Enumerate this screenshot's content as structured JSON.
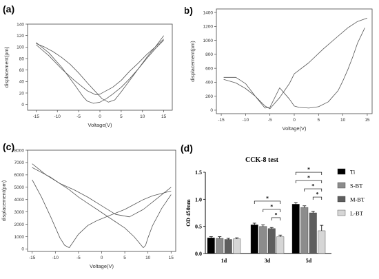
{
  "chart_data": [
    {
      "panel_label": "(a)",
      "type": "line",
      "xlabel": "Voltage(V)",
      "ylabel": "displacement(pm)",
      "xlim": [
        -17,
        17
      ],
      "ylim": [
        -10,
        140
      ],
      "xticks": [
        -15,
        -10,
        -5,
        0,
        5,
        10,
        15
      ],
      "yticks": [
        0,
        20,
        40,
        60,
        80,
        100,
        120,
        140
      ],
      "series": [
        {
          "x": [
            -15,
            -12,
            -9,
            -6,
            -4,
            -3,
            -1.5,
            0,
            1.5,
            3,
            5,
            7,
            9,
            11,
            13,
            15
          ],
          "y": [
            108,
            90,
            65,
            35,
            14,
            6,
            2,
            4,
            10,
            18,
            30,
            45,
            62,
            80,
            97,
            112
          ]
        },
        {
          "x": [
            15,
            13,
            11,
            9,
            7,
            5,
            3.5,
            2,
            0.5,
            -1,
            -3,
            -5,
            -7,
            -9,
            -11,
            -13,
            -15
          ],
          "y": [
            120,
            100,
            82,
            62,
            42,
            22,
            8,
            4,
            10,
            22,
            38,
            55,
            70,
            82,
            92,
            100,
            106
          ]
        },
        {
          "x": [
            -15,
            -12,
            -9,
            -6,
            -3,
            -1,
            0,
            1,
            3,
            5,
            7,
            9,
            11,
            13,
            15
          ],
          "y": [
            104,
            85,
            62,
            42,
            24,
            17,
            18,
            22,
            30,
            42,
            58,
            72,
            87,
            100,
            114
          ]
        }
      ]
    },
    {
      "panel_label": "(b)",
      "type": "line",
      "xlabel": "Voltage(V)",
      "ylabel": "displacement(pm)",
      "xlim": [
        -16,
        16
      ],
      "ylim": [
        -50,
        1450
      ],
      "xticks": [
        -15,
        -10,
        -5,
        0,
        5,
        10,
        15
      ],
      "yticks": [
        0,
        200,
        400,
        600,
        800,
        1000,
        1200,
        1400
      ],
      "series": [
        {
          "x": [
            -14.5,
            -12,
            -10,
            -8,
            -6,
            -5,
            -3,
            -1,
            0,
            3,
            6,
            9,
            11,
            13,
            15
          ],
          "y": [
            440,
            390,
            310,
            200,
            60,
            20,
            180,
            380,
            520,
            680,
            880,
            1060,
            1180,
            1270,
            1320
          ]
        },
        {
          "x": [
            14.5,
            13,
            12,
            11,
            10,
            9,
            7,
            5,
            3,
            1,
            0,
            -1,
            -3,
            -5,
            -6,
            -8,
            -10,
            -12,
            -14.5
          ],
          "y": [
            1180,
            960,
            760,
            580,
            420,
            280,
            120,
            50,
            30,
            40,
            60,
            160,
            320,
            40,
            30,
            200,
            380,
            470,
            470
          ]
        }
      ]
    },
    {
      "panel_label": "(c)",
      "type": "line",
      "xlabel": "Voltage(V)",
      "ylabel": "displacement(pm)",
      "xlim": [
        -16,
        16
      ],
      "ylim": [
        -200,
        8000
      ],
      "xticks": [
        -15,
        -10,
        -5,
        0,
        5,
        10,
        15
      ],
      "yticks": [
        0,
        1000,
        2000,
        3000,
        4000,
        5000,
        6000,
        7000,
        8000
      ],
      "series": [
        {
          "x": [
            -15,
            -13,
            -11,
            -9,
            -8,
            -7,
            -5,
            -3,
            -1,
            1,
            3,
            5,
            7,
            9,
            11,
            13,
            15
          ],
          "y": [
            5600,
            4200,
            2600,
            900,
            300,
            100,
            1200,
            1900,
            2300,
            2600,
            2900,
            3200,
            3600,
            4000,
            4300,
            4500,
            4700
          ]
        },
        {
          "x": [
            15,
            13,
            11,
            10,
            9.5,
            9,
            7,
            5,
            3,
            1,
            -1,
            -3,
            -5,
            -7,
            -9,
            -11,
            -13,
            -15
          ],
          "y": [
            4400,
            3300,
            1900,
            900,
            300,
            100,
            1000,
            1700,
            2200,
            2700,
            3200,
            3700,
            4200,
            4800,
            5300,
            5800,
            6200,
            6600
          ]
        },
        {
          "x": [
            -15,
            -12,
            -9,
            -6,
            -3,
            0,
            3,
            6,
            9,
            12,
            15
          ],
          "y": [
            6900,
            6000,
            5300,
            4800,
            4200,
            3500,
            2800,
            2600,
            3200,
            4100,
            5000
          ]
        }
      ]
    },
    {
      "panel_label": "(d)",
      "type": "bar",
      "title": "CCK-8 test",
      "ylabel": "OD 450nm",
      "ylim": [
        0,
        1.5
      ],
      "yticks": [
        0.0,
        0.5,
        1.0,
        1.5
      ],
      "yticklabels": [
        "0.0",
        "0.5",
        "1.0",
        "1.5"
      ],
      "categories": [
        "1d",
        "3d",
        "5d"
      ],
      "series": [
        {
          "name": "Ti",
          "color": "#000000",
          "values": [
            0.29,
            0.53,
            0.91
          ],
          "errors": [
            0.02,
            0.03,
            0.03
          ]
        },
        {
          "name": "S-BT",
          "color": "#8c8c8c",
          "values": [
            0.28,
            0.5,
            0.85
          ],
          "errors": [
            0.03,
            0.03,
            0.03
          ]
        },
        {
          "name": "M-BT",
          "color": "#5e5e5e",
          "values": [
            0.26,
            0.46,
            0.75
          ],
          "errors": [
            0.02,
            0.02,
            0.03
          ]
        },
        {
          "name": "L-BT",
          "color": "#d6d6d6",
          "values": [
            0.27,
            0.31,
            0.42
          ],
          "errors": [
            0.02,
            0.03,
            0.1
          ]
        }
      ],
      "significance_marker": "*",
      "legend_position": "right"
    }
  ]
}
